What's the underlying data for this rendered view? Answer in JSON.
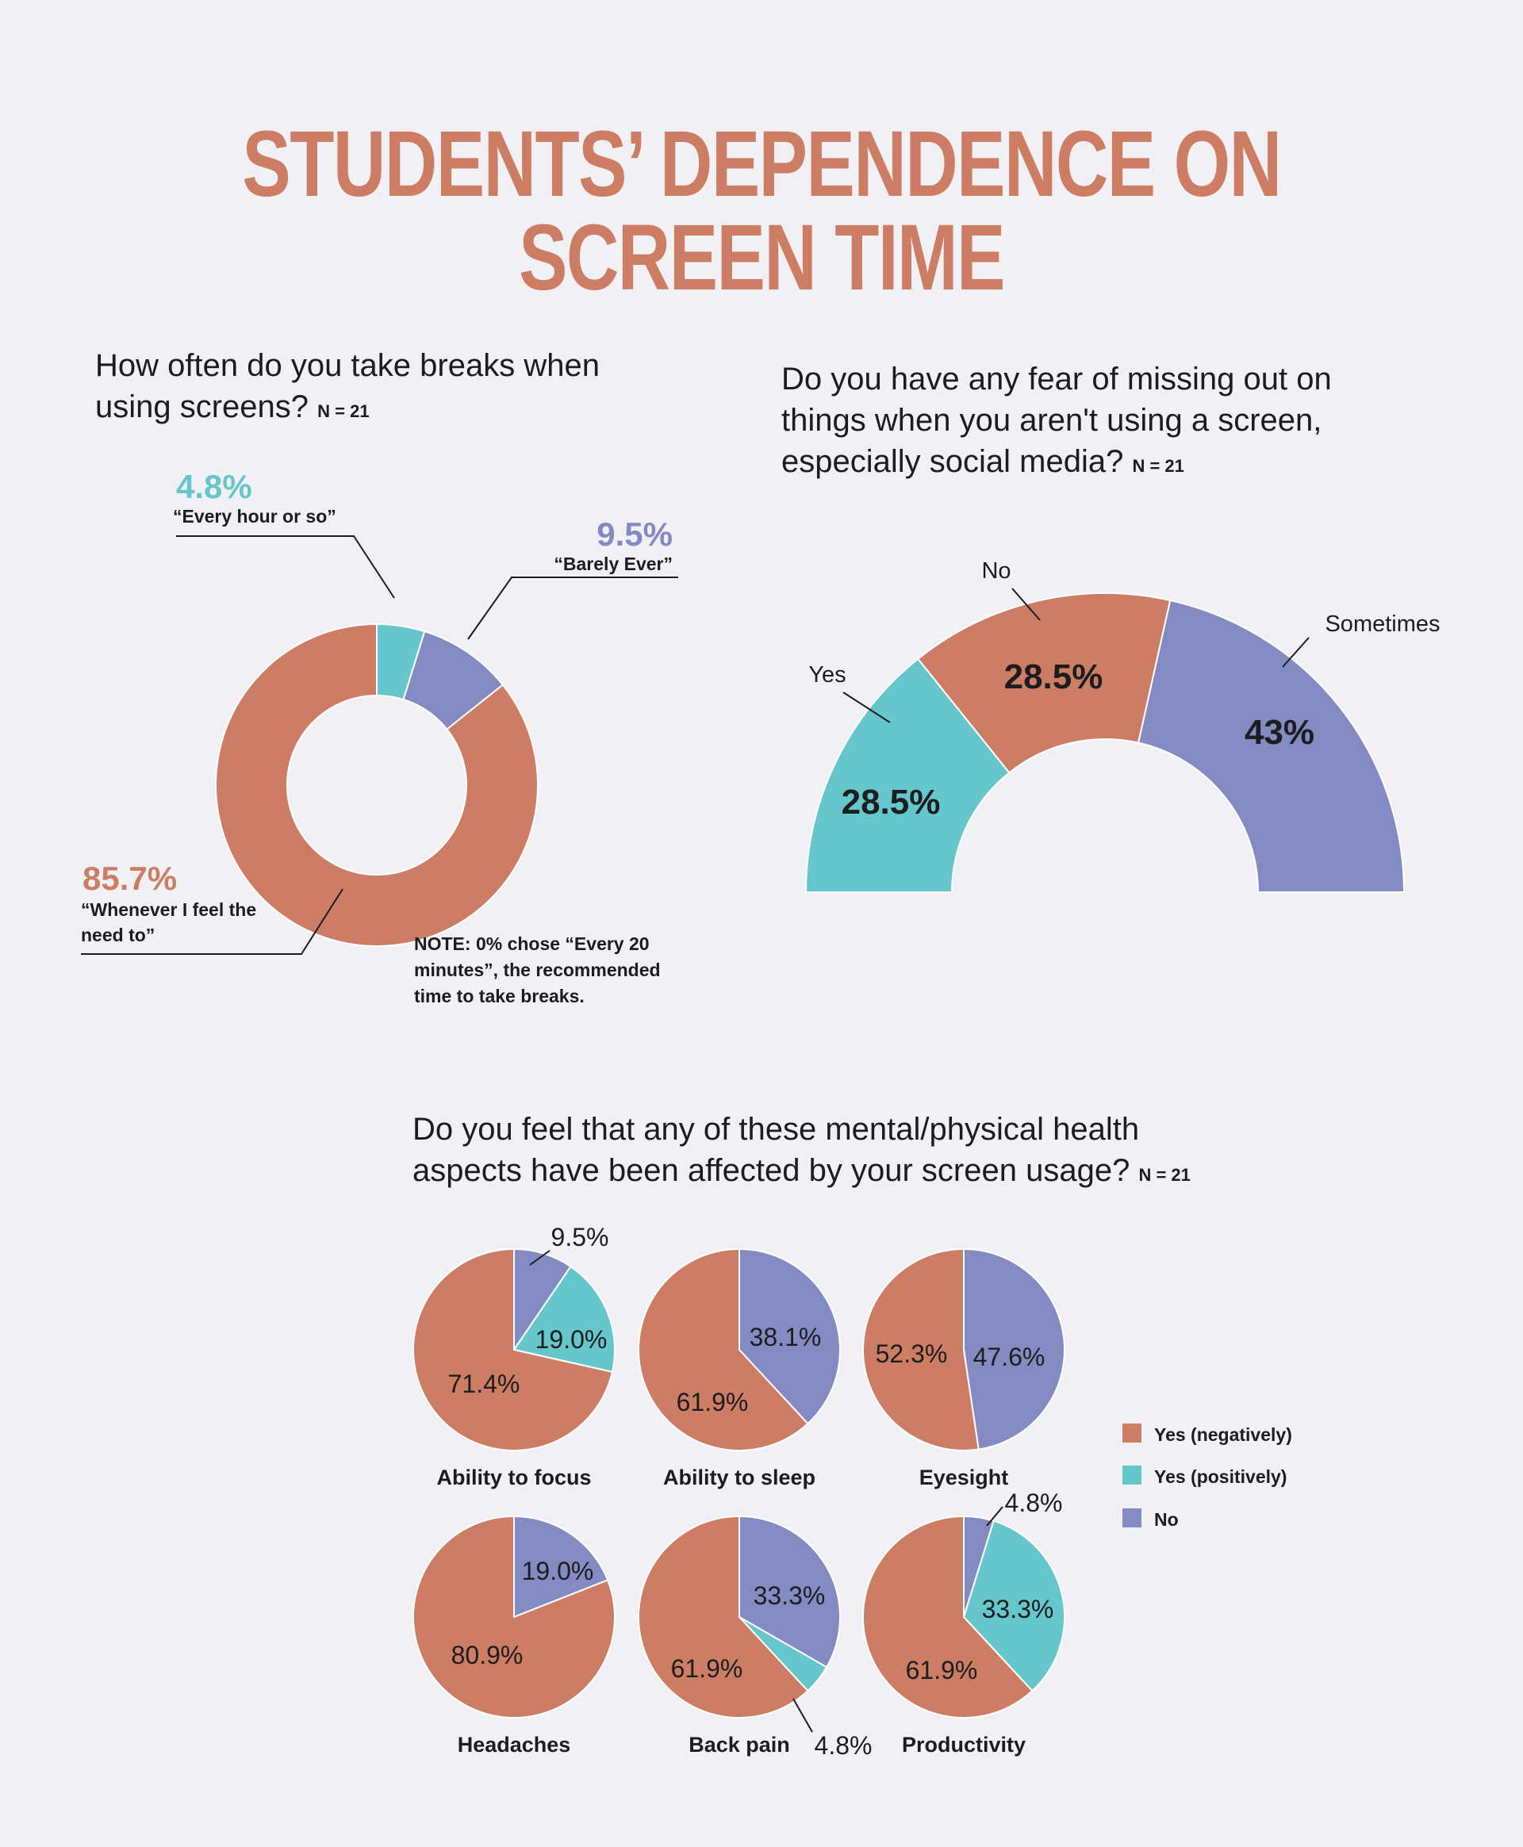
{
  "title": "STUDENTS’ DEPENDENCE ON SCREEN TIME",
  "colors": {
    "negative": "#cc7d63",
    "positive": "#65c6cb",
    "no": "#838bc2",
    "background": "#f1f1f5",
    "text": "#1d1d1f"
  },
  "q1": {
    "question": "How often do you take breaks when using screens?",
    "n_label": "N = 21",
    "note": [
      "NOTE: 0% chose “Every 20",
      "minutes”, the recommended",
      "time to take breaks."
    ]
  },
  "q2": {
    "question": "Do you have any fear of missing out on things when you aren't using a screen, especially social media?",
    "n_label": "N = 21"
  },
  "q3": {
    "question": "Do you feel that any of these mental/physical health aspects have been affected by your screen usage?",
    "n_label": "N = 21"
  },
  "chart_data": [
    {
      "type": "pie",
      "variant": "donut",
      "categories": [
        "“Every hour or so”",
        "“Barely Ever”",
        "“Whenever I feel the need to”"
      ],
      "values": [
        4.8,
        9.5,
        85.7
      ],
      "labels": [
        "4.8%",
        "9.5%",
        "85.7%"
      ],
      "colors": [
        "#65c6cb",
        "#838bc2",
        "#cc7d63"
      ]
    },
    {
      "type": "pie",
      "variant": "semicircle",
      "categories": [
        "Yes",
        "No",
        "Sometimes"
      ],
      "values": [
        28.5,
        28.5,
        43
      ],
      "labels": [
        "28.5%",
        "28.5%",
        "43%"
      ],
      "colors": [
        "#65c6cb",
        "#cc7d63",
        "#838bc2"
      ]
    },
    {
      "type": "pie",
      "small_multiples": true,
      "legend": [
        "Yes (negatively)",
        "Yes (positively)",
        "No"
      ],
      "legend_colors": [
        "#cc7d63",
        "#65c6cb",
        "#838bc2"
      ],
      "legend_position": "right",
      "panels": [
        {
          "name": "Ability to focus",
          "no": 9.5,
          "positive": 19.0,
          "negative": 71.4,
          "no_label": "9.5%",
          "positive_label": "19.0%",
          "negative_label": "71.4%"
        },
        {
          "name": "Ability to sleep",
          "no": 38.1,
          "positive": 0,
          "negative": 61.9,
          "no_label": "38.1%",
          "positive_label": "",
          "negative_label": "61.9%"
        },
        {
          "name": "Eyesight",
          "no": 47.6,
          "positive": 0,
          "negative": 52.3,
          "no_label": "47.6%",
          "positive_label": "",
          "negative_label": "52.3%"
        },
        {
          "name": "Headaches",
          "no": 19.0,
          "positive": 0,
          "negative": 80.9,
          "no_label": "19.0%",
          "positive_label": "",
          "negative_label": "80.9%"
        },
        {
          "name": "Back pain",
          "no": 33.3,
          "positive": 4.8,
          "negative": 61.9,
          "no_label": "33.3%",
          "positive_label": "4.8%",
          "negative_label": "61.9%"
        },
        {
          "name": "Productivity",
          "no": 4.8,
          "positive": 33.3,
          "negative": 61.9,
          "no_label": "4.8%",
          "positive_label": "33.3%",
          "negative_label": "61.9%"
        }
      ]
    }
  ]
}
